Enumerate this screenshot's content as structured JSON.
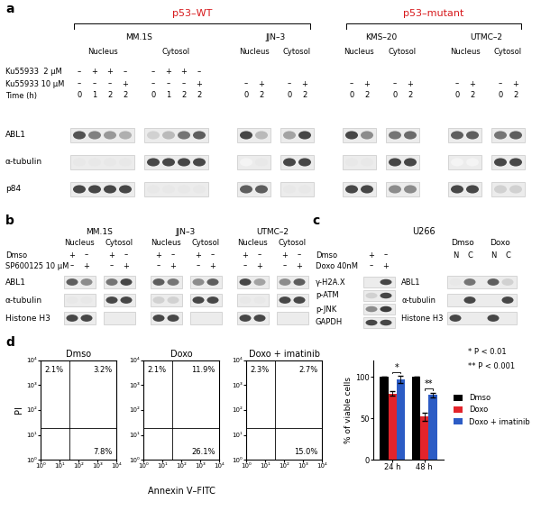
{
  "panel_a": {
    "label": "a",
    "headers": [
      {
        "text": "p53–WT",
        "cell_lines": [
          "MM.1S",
          "JJN–3"
        ]
      },
      {
        "text": "p53–mutant",
        "cell_lines": [
          "KMS–20",
          "UTMC–2"
        ]
      }
    ],
    "condition_rows": [
      "Ku55933  2 μM",
      "Ku55933 10 μM",
      "Time (h)"
    ],
    "blots": [
      "ABL1",
      "α-tubulin",
      "p84"
    ],
    "cell_lines": [
      {
        "name": "MM.1S",
        "fractions": [
          {
            "name": "Nucleus",
            "lanes": [
              [
                "–",
                "–",
                "0"
              ],
              [
                "+",
                "–",
                "1"
              ],
              [
                "+",
                "–",
                "2"
              ],
              [
                "–",
                "+",
                "2"
              ]
            ],
            "bands": [
              [
                0.75,
                0.55,
                0.45,
                0.35
              ],
              [
                0.1,
                0.1,
                0.1,
                0.1
              ],
              [
                0.8,
                0.8,
                0.8,
                0.8
              ]
            ]
          },
          {
            "name": "Cytosol",
            "lanes": [
              [
                "–",
                "–",
                "0"
              ],
              [
                "+",
                "–",
                "1"
              ],
              [
                "+",
                "–",
                "2"
              ],
              [
                "–",
                "+",
                "2"
              ]
            ],
            "bands": [
              [
                0.2,
                0.3,
                0.6,
                0.7
              ],
              [
                0.8,
                0.8,
                0.8,
                0.8
              ],
              [
                0.1,
                0.1,
                0.1,
                0.1
              ]
            ]
          }
        ]
      },
      {
        "name": "JJN–3",
        "fractions": [
          {
            "name": "Nucleus",
            "lanes": [
              [
                null,
                "–",
                "0"
              ],
              [
                null,
                "+",
                "2"
              ]
            ],
            "bands": [
              [
                0.8,
                0.3
              ],
              [
                0.05,
                0.1
              ],
              [
                0.7,
                0.7
              ]
            ]
          },
          {
            "name": "Cytosol",
            "lanes": [
              [
                null,
                "–",
                "0"
              ],
              [
                null,
                "+",
                "2"
              ]
            ],
            "bands": [
              [
                0.4,
                0.8
              ],
              [
                0.8,
                0.8
              ],
              [
                0.1,
                0.1
              ]
            ]
          }
        ]
      },
      {
        "name": "KMS–20",
        "fractions": [
          {
            "name": "Nucleus",
            "lanes": [
              [
                null,
                "–",
                "0"
              ],
              [
                null,
                "+",
                "2"
              ]
            ],
            "bands": [
              [
                0.8,
                0.5
              ],
              [
                0.1,
                0.1
              ],
              [
                0.8,
                0.8
              ]
            ]
          },
          {
            "name": "Cytosol",
            "lanes": [
              [
                null,
                "–",
                "0"
              ],
              [
                null,
                "+",
                "2"
              ]
            ],
            "bands": [
              [
                0.6,
                0.65
              ],
              [
                0.8,
                0.8
              ],
              [
                0.5,
                0.5
              ]
            ]
          }
        ]
      },
      {
        "name": "UTMC–2",
        "fractions": [
          {
            "name": "Nucleus",
            "lanes": [
              [
                null,
                "–",
                "0"
              ],
              [
                null,
                "+",
                "2"
              ]
            ],
            "bands": [
              [
                0.7,
                0.7
              ],
              [
                0.05,
                0.05
              ],
              [
                0.8,
                0.8
              ]
            ]
          },
          {
            "name": "Cytosol",
            "lanes": [
              [
                null,
                "–",
                "0"
              ],
              [
                null,
                "+",
                "2"
              ]
            ],
            "bands": [
              [
                0.6,
                0.7
              ],
              [
                0.8,
                0.8
              ],
              [
                0.2,
                0.2
              ]
            ]
          }
        ]
      }
    ]
  },
  "panel_b": {
    "label": "b",
    "condition_rows": [
      "Dmso",
      "SP600125 10 μM"
    ],
    "blots": [
      "ABL1",
      "α-tubulin",
      "Histone H3"
    ],
    "cell_lines": [
      {
        "name": "MM.1S",
        "fractions": [
          {
            "name": "Nucleus",
            "lanes": [
              [
                "+",
                "–"
              ],
              [
                "–",
                "+"
              ]
            ],
            "bands": [
              [
                0.7,
                0.5
              ],
              [
                0.1,
                0.1
              ],
              [
                0.8,
                0.8
              ]
            ]
          },
          {
            "name": "Cytosol",
            "lanes": [
              [
                "+",
                "–"
              ],
              [
                "–",
                "+"
              ]
            ],
            "bands": [
              [
                0.6,
                0.8
              ],
              [
                0.8,
                0.8
              ],
              [
                0.0,
                0.0
              ]
            ]
          }
        ]
      },
      {
        "name": "JJN–3",
        "fractions": [
          {
            "name": "Nucleus",
            "lanes": [
              [
                "+",
                "–"
              ],
              [
                "–",
                "+"
              ]
            ],
            "bands": [
              [
                0.7,
                0.6
              ],
              [
                0.2,
                0.2
              ],
              [
                0.8,
                0.8
              ]
            ]
          },
          {
            "name": "Cytosol",
            "lanes": [
              [
                "+",
                "–"
              ],
              [
                "–",
                "+"
              ]
            ],
            "bands": [
              [
                0.5,
                0.7
              ],
              [
                0.8,
                0.8
              ],
              [
                0.0,
                0.0
              ]
            ]
          }
        ]
      },
      {
        "name": "UTMC–2",
        "fractions": [
          {
            "name": "Nucleus",
            "lanes": [
              [
                "+",
                "–"
              ],
              [
                "–",
                "+"
              ]
            ],
            "bands": [
              [
                0.8,
                0.4
              ],
              [
                0.1,
                0.1
              ],
              [
                0.8,
                0.8
              ]
            ]
          },
          {
            "name": "Cytosol",
            "lanes": [
              [
                "+",
                "–"
              ],
              [
                "–",
                "+"
              ]
            ],
            "bands": [
              [
                0.5,
                0.7
              ],
              [
                0.8,
                0.8
              ],
              [
                0.0,
                0.0
              ]
            ]
          }
        ]
      }
    ]
  },
  "panel_c": {
    "label": "c",
    "title": "U266",
    "left": {
      "condition_rows": [
        "Dmso",
        "Doxo 40nM"
      ],
      "lanes": [
        [
          "+",
          "–"
        ],
        [
          "–",
          "+"
        ]
      ],
      "blots": [
        {
          "name": "γ-H2A.X",
          "bands": [
            0.0,
            0.8
          ]
        },
        {
          "name": "p-ATM",
          "bands": [
            0.2,
            0.8
          ]
        },
        {
          "name": "p-JNK",
          "bands": [
            0.5,
            0.85
          ]
        },
        {
          "name": "GAPDH",
          "bands": [
            0.8,
            0.8
          ]
        }
      ]
    },
    "right": {
      "groups": [
        {
          "name": "Dmso",
          "lanes": [
            "N",
            "C"
          ]
        },
        {
          "name": "Doxo",
          "lanes": [
            "N",
            "C"
          ]
        }
      ],
      "blots": [
        {
          "name": "ABL1",
          "bands": [
            0.1,
            0.6,
            0.7,
            0.2
          ]
        },
        {
          "name": "α-tubulin",
          "bands": [
            0.0,
            0.8,
            0.0,
            0.8
          ]
        },
        {
          "name": "Histone H3",
          "bands": [
            0.8,
            0.0,
            0.8,
            0.0
          ]
        }
      ]
    }
  },
  "panel_d": {
    "label": "d",
    "flow_cytometry": {
      "xlabel": "Annexin V–FITC",
      "ylabel": "PI",
      "log": true,
      "xlim": [
        1,
        10000
      ],
      "ylim": [
        1,
        10000
      ],
      "xticks": [
        {
          "value": 1,
          "label": "10⁰"
        },
        {
          "value": 10,
          "label": "10¹"
        },
        {
          "value": 100,
          "label": "10²"
        },
        {
          "value": 1000,
          "label": "10³"
        },
        {
          "value": 10000,
          "label": "10⁴"
        }
      ],
      "yticks": [
        {
          "value": 1,
          "label": "10⁰"
        },
        {
          "value": 10,
          "label": "10¹"
        },
        {
          "value": 100,
          "label": "10²"
        },
        {
          "value": 1000,
          "label": "10³"
        },
        {
          "value": 10000,
          "label": "10⁴"
        }
      ],
      "plots": [
        {
          "title": "Dmso",
          "quadrants": {
            "upper_left": "2.1%",
            "upper_right": "3.2%",
            "lower_right": "7.8%"
          }
        },
        {
          "title": "Doxo",
          "quadrants": {
            "upper_left": "2.1%",
            "upper_right": "11.9%",
            "lower_right": "26.1%"
          }
        },
        {
          "title": "Doxo + imatinib",
          "quadrants": {
            "upper_left": "2.3%",
            "upper_right": "2.7%",
            "lower_right": "15.0%"
          }
        }
      ]
    }
  },
  "chart_data": {
    "type": "bar",
    "ylabel": "% of viable cells",
    "categories": [
      "24 h",
      "48 h"
    ],
    "series": [
      {
        "name": "Dmso",
        "color": "#000000",
        "values": [
          100,
          100
        ],
        "errors": [
          0,
          0
        ]
      },
      {
        "name": "Doxo",
        "color": "#e3242b",
        "values": [
          80,
          52
        ],
        "errors": [
          3,
          5
        ]
      },
      {
        "name": "Doxo + imatinib",
        "color": "#2c5cc5",
        "values": [
          97,
          78
        ],
        "errors": [
          4,
          3
        ]
      }
    ],
    "ylim": [
      0,
      120
    ],
    "yticks": [
      0,
      50,
      100
    ],
    "grid": false,
    "legend": "right",
    "significance": [
      {
        "category": "24 h",
        "between": [
          "Doxo",
          "Doxo + imatinib"
        ],
        "label": "*"
      },
      {
        "category": "48 h",
        "between": [
          "Doxo",
          "Doxo + imatinib"
        ],
        "label": "**"
      }
    ],
    "notes": [
      "* P < 0.01",
      "** P < 0.001"
    ]
  }
}
